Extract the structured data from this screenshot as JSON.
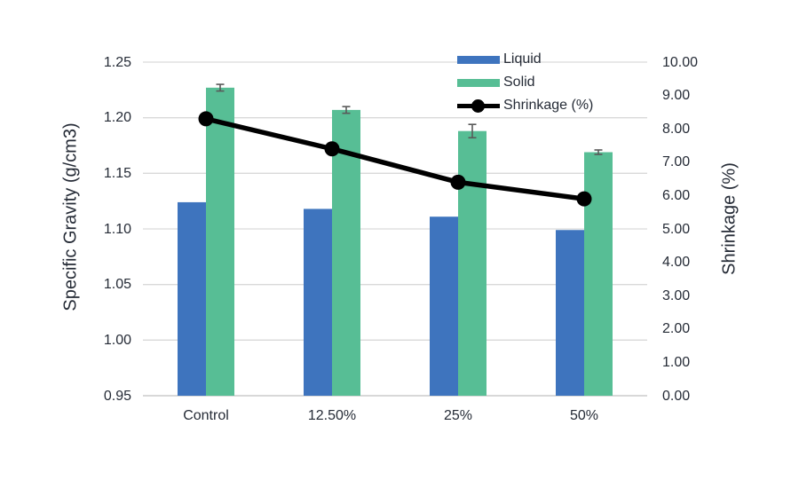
{
  "chart_data": {
    "type": "combo",
    "subtype": "grouped-bars-with-error-bars-plus-line-on-secondary-axis",
    "title": "",
    "categories": [
      "Control",
      "12.50%",
      "25%",
      "50%"
    ],
    "series": [
      {
        "name": "Liquid",
        "type": "bar",
        "axis": "left",
        "color": "#3e74be",
        "values": [
          1.124,
          1.118,
          1.111,
          1.099
        ]
      },
      {
        "name": "Solid",
        "type": "bar",
        "axis": "left",
        "color": "#57be95",
        "values": [
          1.227,
          1.207,
          1.188,
          1.169
        ],
        "error_bars": [
          0.003,
          0.003,
          0.006,
          0.002
        ]
      },
      {
        "name": "Shrinkage (%)",
        "type": "line",
        "axis": "right",
        "color": "#000000",
        "marker": "circle",
        "values": [
          8.3,
          7.4,
          6.4,
          5.9
        ]
      }
    ],
    "left_axis": {
      "title": "Specific Gravity (g/cm3)",
      "min": 0.95,
      "max": 1.25,
      "step": 0.05,
      "ticks": [
        "1.25",
        "1.20",
        "1.15",
        "1.10",
        "1.05",
        "1.00",
        "0.95"
      ]
    },
    "right_axis": {
      "title": "Shrinkage (%)",
      "min": 0.0,
      "max": 10.0,
      "step": 1.0,
      "ticks": [
        "10.00",
        "9.00",
        "8.00",
        "7.00",
        "6.00",
        "5.00",
        "4.00",
        "3.00",
        "2.00",
        "1.00",
        "0.00"
      ]
    },
    "legend": {
      "position": "top-center",
      "items": [
        "Liquid",
        "Solid",
        "Shrinkage (%)"
      ]
    },
    "grid": true,
    "colors": {
      "background": "#ffffff",
      "gridline": "#d9d9d9",
      "axis_line": "#c0c0c0",
      "error_bar": "#595959",
      "text": "#252b36"
    }
  }
}
